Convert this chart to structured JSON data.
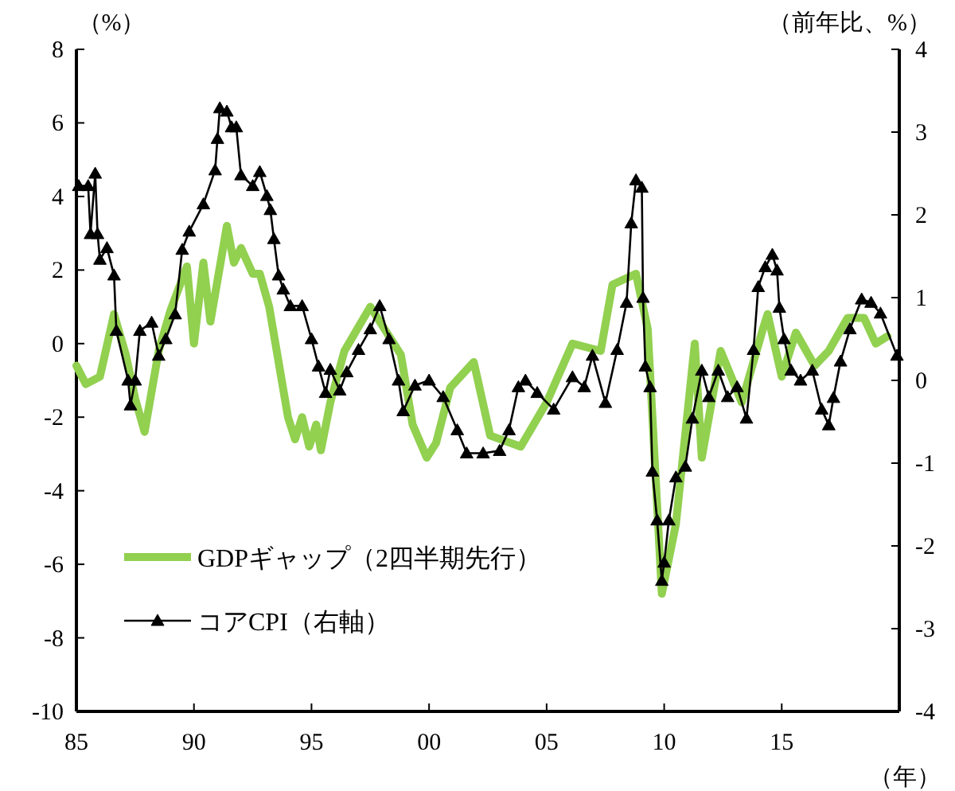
{
  "chart_data": {
    "type": "line",
    "xlabel": "（年）",
    "ylabel": "（%）",
    "y2label": "（前年比、%）",
    "xlim": [
      1985,
      2020
    ],
    "xticks": [
      {
        "value": 1985,
        "label": "85"
      },
      {
        "value": 1990,
        "label": "90"
      },
      {
        "value": 1995,
        "label": "95"
      },
      {
        "value": 2000,
        "label": "00"
      },
      {
        "value": 2005,
        "label": "05"
      },
      {
        "value": 2010,
        "label": "10"
      },
      {
        "value": 2015,
        "label": "15"
      }
    ],
    "ylim": [
      -10,
      8
    ],
    "yticks": [
      -10,
      -8,
      -6,
      -4,
      -2,
      0,
      2,
      4,
      6,
      8
    ],
    "y2lim": [
      -4,
      4
    ],
    "y2ticks": [
      -4,
      -3,
      -2,
      -1,
      0,
      1,
      2,
      3,
      4
    ],
    "legend": "bottom left",
    "series": [
      {
        "name": "GDPギャップ（2四半期先行）",
        "color": "#92d050",
        "marker": "none",
        "x": [
          1985.0,
          1985.4,
          1986.0,
          1986.6,
          1987.1,
          1987.5,
          1987.9,
          1988.5,
          1989.0,
          1989.7,
          1990.0,
          1990.4,
          1990.7,
          1991.4,
          1991.7,
          1992.0,
          1992.5,
          1992.8,
          1993.2,
          1993.6,
          1994.0,
          1994.3,
          1994.6,
          1994.9,
          1995.2,
          1995.4,
          1995.8,
          1996.4,
          1997.5,
          1998.8,
          1999.3,
          1999.9,
          2000.3,
          2000.9,
          2001.9,
          2002.6,
          2003.9,
          2005.0,
          2006.1,
          2007.3,
          2007.8,
          2008.8,
          2009.3,
          2009.9,
          2010.5,
          2011.3,
          2011.6,
          2012.4,
          2013.3,
          2014.2,
          2014.4,
          2015.0,
          2015.6,
          2016.4,
          2017.0,
          2017.8,
          2018.5,
          2019.0,
          2019.5
        ],
        "values": [
          -0.6,
          -1.1,
          -0.9,
          0.8,
          -0.3,
          -1.5,
          -2.4,
          -0.2,
          0.9,
          2.1,
          0.0,
          2.2,
          0.6,
          3.2,
          2.2,
          2.6,
          1.9,
          1.9,
          1.0,
          -0.5,
          -2.0,
          -2.6,
          -2.0,
          -2.8,
          -2.2,
          -2.9,
          -1.6,
          -0.2,
          1.0,
          -0.3,
          -2.2,
          -3.1,
          -2.7,
          -1.2,
          -0.5,
          -2.5,
          -2.8,
          -1.6,
          0.0,
          -0.2,
          1.6,
          1.9,
          0.4,
          -6.8,
          -4.9,
          0.0,
          -3.1,
          -0.2,
          -1.6,
          0.4,
          0.8,
          -0.9,
          0.3,
          -0.6,
          -0.2,
          0.7,
          0.7,
          0.0,
          0.2
        ]
      },
      {
        "name": "コアCPI（右軸）",
        "color": "#000000",
        "marker": "triangle",
        "axis": "y2",
        "x": [
          1985.1,
          1985.5,
          1985.6,
          1985.8,
          1985.9,
          1986.0,
          1986.3,
          1986.6,
          1986.7,
          1987.2,
          1987.3,
          1987.5,
          1987.7,
          1988.2,
          1988.5,
          1988.8,
          1989.2,
          1989.5,
          1989.8,
          1990.4,
          1990.9,
          1991.0,
          1991.1,
          1991.4,
          1991.6,
          1991.8,
          1992.0,
          1992.5,
          1992.8,
          1993.1,
          1993.25,
          1993.4,
          1993.6,
          1993.8,
          1994.1,
          1994.6,
          1995.0,
          1995.3,
          1995.6,
          1995.8,
          1996.2,
          1996.5,
          1997.0,
          1997.5,
          1997.9,
          1998.3,
          1998.7,
          1998.9,
          1999.4,
          2000.0,
          2000.6,
          2001.2,
          2001.6,
          2002.3,
          2003.0,
          2003.4,
          2003.8,
          2004.1,
          2004.6,
          2005.3,
          2006.1,
          2006.6,
          2006.95,
          2007.5,
          2008.0,
          2008.4,
          2008.6,
          2008.8,
          2009.05,
          2009.1,
          2009.2,
          2009.4,
          2009.5,
          2009.7,
          2009.9,
          2010.0,
          2010.2,
          2010.5,
          2010.9,
          2011.2,
          2011.6,
          2011.9,
          2012.3,
          2012.7,
          2013.1,
          2013.5,
          2013.8,
          2014.0,
          2014.3,
          2014.6,
          2014.8,
          2014.9,
          2015.1,
          2015.4,
          2015.8,
          2016.3,
          2016.7,
          2017.0,
          2017.2,
          2017.5,
          2017.9,
          2018.4,
          2018.8,
          2019.2,
          2019.9
        ],
        "values": [
          2.35,
          2.35,
          1.77,
          2.5,
          1.77,
          1.46,
          1.6,
          1.27,
          0.6,
          0.0,
          -0.3,
          0.0,
          0.6,
          0.7,
          0.3,
          0.5,
          0.8,
          1.58,
          1.8,
          2.13,
          2.54,
          2.92,
          3.29,
          3.25,
          3.06,
          3.06,
          2.48,
          2.35,
          2.52,
          2.23,
          2.06,
          1.71,
          1.27,
          1.1,
          0.9,
          0.9,
          0.5,
          0.17,
          -0.15,
          0.13,
          -0.12,
          0.1,
          0.37,
          0.62,
          0.9,
          0.5,
          0.0,
          -0.37,
          -0.06,
          0.0,
          -0.2,
          -0.6,
          -0.88,
          -0.88,
          -0.85,
          -0.6,
          -0.08,
          0.0,
          -0.15,
          -0.35,
          0.04,
          -0.08,
          0.3,
          -0.27,
          0.37,
          0.94,
          1.9,
          2.42,
          2.33,
          1.0,
          0.17,
          -0.08,
          -1.1,
          -1.69,
          -2.42,
          -2.2,
          -1.69,
          -1.17,
          -1.04,
          -0.46,
          0.12,
          -0.2,
          0.12,
          -0.2,
          -0.08,
          -0.46,
          0.37,
          1.13,
          1.37,
          1.52,
          1.33,
          0.88,
          0.5,
          0.12,
          0.0,
          0.12,
          -0.35,
          -0.54,
          -0.21,
          0.23,
          0.62,
          0.98,
          0.94,
          0.81,
          0.3
        ]
      }
    ]
  }
}
